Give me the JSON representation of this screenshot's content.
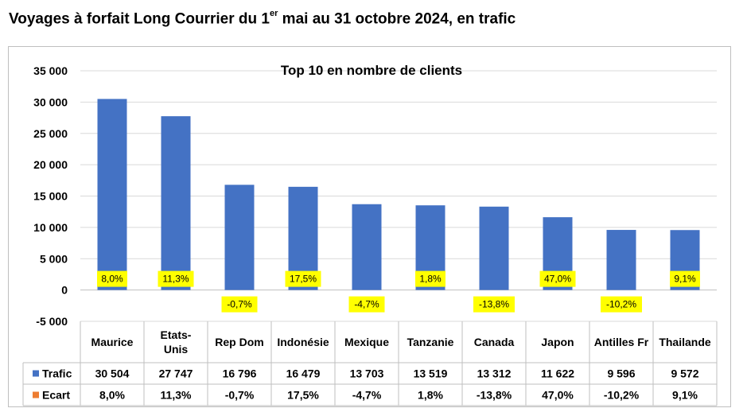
{
  "page": {
    "title_main": "Voyages à forfait Long Courrier du 1",
    "title_sup": "er",
    "title_rest": " mai au 31 octobre 2024, en trafic"
  },
  "chart_data": {
    "type": "bar",
    "title": "Top 10 en nombre de clients",
    "categories": [
      "Maurice",
      "Etats-Unis",
      "Rep Dom",
      "Indonésie",
      "Mexique",
      "Tanzanie",
      "Canada",
      "Japon",
      "Antilles Fr",
      "Thailande"
    ],
    "category_display": [
      [
        "Maurice"
      ],
      [
        "Etats-",
        "Unis"
      ],
      [
        "Rep Dom"
      ],
      [
        "Indonésie"
      ],
      [
        "Mexique"
      ],
      [
        "Tanzanie"
      ],
      [
        "Canada"
      ],
      [
        "Japon"
      ],
      [
        "Antilles Fr"
      ],
      [
        "Thailande"
      ]
    ],
    "series": [
      {
        "name": "Trafic",
        "color": "#4472C4",
        "values": [
          30504,
          27747,
          16796,
          16479,
          13703,
          13519,
          13312,
          11622,
          9596,
          9572
        ],
        "table_values": [
          "30 504",
          "27 747",
          "16 796",
          "16 479",
          "13 703",
          "13 519",
          "13 312",
          "11 622",
          "9 596",
          "9 572"
        ]
      },
      {
        "name": "Ecart",
        "color": "#ED7D31",
        "values": [
          8.0,
          11.3,
          -0.7,
          17.5,
          -4.7,
          1.8,
          -13.8,
          47.0,
          -10.2,
          9.1
        ],
        "table_values": [
          "8,0%",
          "11,3%",
          "-0,7%",
          "17,5%",
          "-4,7%",
          "1,8%",
          "-13,8%",
          "47,0%",
          "-10,2%",
          "9,1%"
        ]
      }
    ],
    "data_labels": [
      "8,0%",
      "11,3%",
      "-0,7%",
      "17,5%",
      "-4,7%",
      "1,8%",
      "-13,8%",
      "47,0%",
      "-10,2%",
      "9,1%"
    ],
    "data_label_color": "#FFFF00",
    "ylim": [
      -5000,
      35000
    ],
    "yticks": [
      -5000,
      0,
      5000,
      10000,
      15000,
      20000,
      25000,
      30000,
      35000
    ],
    "ytick_labels": [
      "-5 000",
      "0",
      "5 000",
      "10 000",
      "15 000",
      "20 000",
      "25 000",
      "30 000",
      "35 000"
    ],
    "grid": true,
    "legend": "data-table"
  }
}
